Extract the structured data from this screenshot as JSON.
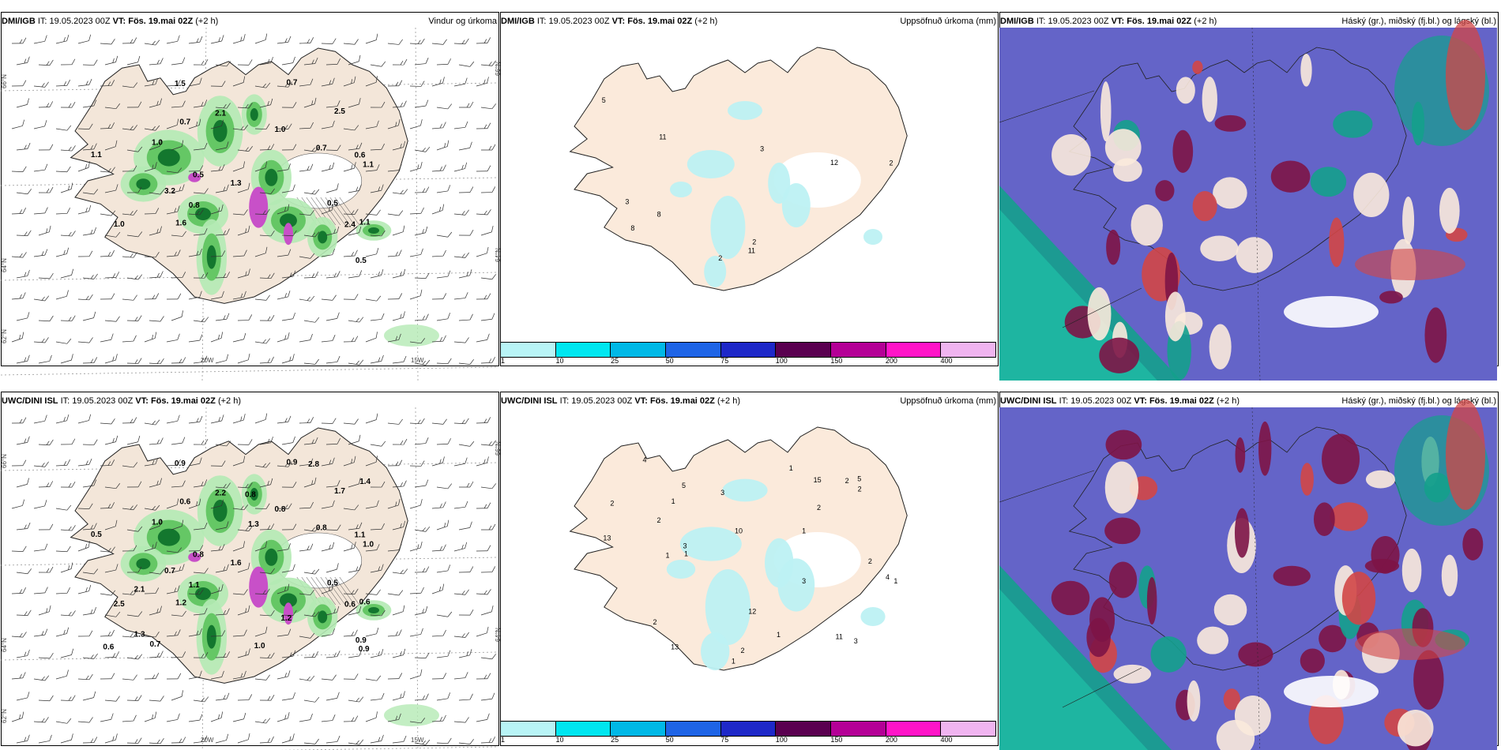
{
  "common": {
    "it_label": "IT:",
    "it_value": "19.05.2023 00Z",
    "vt_label": "VT:",
    "vt_value": "Fös. 19.mai 02Z",
    "lead": "(+2 h)"
  },
  "rows": [
    {
      "model": "DMI/IGB",
      "titles": [
        "Vindur og úrkoma",
        "Uppsöfnuð úrkoma (mm)",
        "Háský (gr.), miðský (fj.bl.) og lágský (bl.)"
      ],
      "wind_labels": [
        "0.7",
        "0.6",
        "1.0",
        "1.1",
        "0.5",
        "1.1",
        "0.8",
        "0.7",
        "2.4",
        "2.5",
        "1.0",
        "0.5",
        "0.7",
        "1.6",
        "1.0",
        "1.3",
        "3.2",
        "1.1",
        "1.5",
        "2.1",
        "0.5"
      ],
      "accum_labels": [
        "2",
        "2",
        "3",
        "5",
        "2",
        "8",
        "11",
        "3",
        "12",
        "11",
        "8"
      ]
    },
    {
      "model": "UWC/DINI ISL",
      "titles": [
        "",
        "Uppsöfnuð úrkoma (mm)",
        "Háský (gr.), miðský (fj.bl.) og lágský (bl.)"
      ],
      "wind_labels": [
        "0.6",
        "1.1",
        "0.8",
        "1.0",
        "0.8",
        "0.6",
        "1.1",
        "0.9",
        "0.6",
        "1.7",
        "1.0",
        "0.5",
        "0.8",
        "1.2",
        "2.5",
        "1.6",
        "0.7",
        "0.5",
        "0.9",
        "2.2",
        "0.9",
        "0.8",
        "1.3",
        "2.1",
        "1.3",
        "2.8",
        "0.6",
        "1.2",
        "1.0",
        "1.4",
        "0.7",
        "0.9"
      ],
      "accum_labels": [
        "2",
        "1",
        "1",
        "2",
        "2",
        "1",
        "3",
        "1",
        "5",
        "1",
        "4",
        "5",
        "2",
        "2",
        "13",
        "13",
        "3",
        "3",
        "3",
        "1",
        "11",
        "2",
        "10",
        "12",
        "15",
        "2",
        "2",
        "1",
        "4",
        "1"
      ]
    }
  ],
  "axes": {
    "lat_top": "66°N",
    "lat_mid": "64°N",
    "lat_bottom": "62°N",
    "lon_a": "20W",
    "lon_b": "15W"
  },
  "colorbar": {
    "ticks": [
      "1",
      "10",
      "25",
      "50",
      "75",
      "100",
      "150",
      "200",
      "400"
    ],
    "colors": [
      "#b8f4f6",
      "#00e6f0",
      "#00b8e6",
      "#1e64e6",
      "#1e28c8",
      "#5a0050",
      "#b40096",
      "#ff14c8",
      "#f0b4f0"
    ]
  },
  "colors": {
    "land": "#f3e6d9",
    "accum_land": "#fbeadb",
    "precip_light": "#b4eab4",
    "precip_mid": "#5cc35c",
    "precip_dark": "#0a6e28",
    "convective": "#c850c8",
    "accum_light": "#bdf1f3",
    "cloud_base": "#6464c8",
    "cloud_high": "#14a08c",
    "cloud_mid": "#7d1446",
    "cloud_low": "#d24646"
  }
}
